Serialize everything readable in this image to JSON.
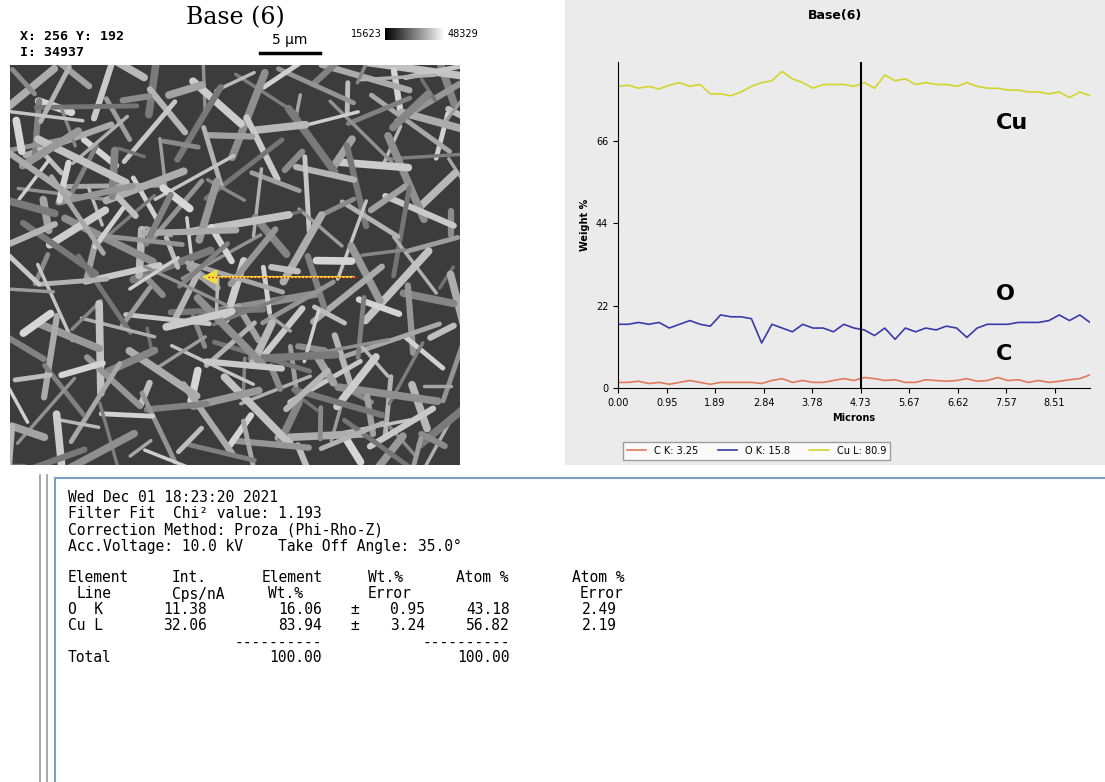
{
  "sem_image": {
    "title": "Base (6)",
    "coords": "X: 256 Y: 192",
    "intensity": "I: 34937",
    "scale_bar": "5 µm",
    "gray_min": "15623",
    "gray_max": "48329"
  },
  "chart_data": {
    "type": "line",
    "title": "Base(6)",
    "x_label": "Microns",
    "y_label": "Weight %",
    "x": [
      0,
      0.2,
      0.4,
      0.6,
      0.8,
      1.0,
      1.2,
      1.4,
      1.6,
      1.8,
      2.0,
      2.2,
      2.4,
      2.6,
      2.8,
      3.0,
      3.2,
      3.4,
      3.6,
      3.8,
      4.0,
      4.2,
      4.4,
      4.6,
      4.8,
      5.0,
      5.2,
      5.4,
      5.6,
      5.8,
      6.0,
      6.2,
      6.4,
      6.6,
      6.8,
      7.0,
      7.2,
      7.4,
      7.6,
      7.8,
      8.0,
      8.2,
      8.4,
      8.6,
      8.8,
      9.0,
      9.2
    ],
    "series": [
      {
        "name": "C K: 3.25",
        "color": "#e07a5a",
        "values": [
          1.5,
          1.5,
          1.8,
          1.2,
          1.5,
          1.0,
          1.5,
          2.0,
          1.5,
          1.0,
          1.5,
          1.5,
          1.5,
          1.5,
          1.2,
          2.0,
          2.5,
          1.5,
          2.0,
          1.5,
          1.5,
          2.0,
          2.5,
          2.0,
          2.8,
          2.5,
          2.0,
          2.2,
          1.5,
          1.5,
          2.2,
          2.0,
          1.8,
          2.0,
          2.5,
          1.8,
          2.0,
          2.8,
          2.0,
          2.2,
          1.5,
          2.0,
          1.5,
          1.8,
          2.2,
          2.5,
          3.5
        ]
      },
      {
        "name": "O K: 15.8",
        "color": "#3a3aa8",
        "values": [
          17.0,
          17.0,
          17.5,
          17.0,
          17.5,
          16.0,
          17.0,
          18.0,
          17.0,
          16.5,
          19.5,
          19.0,
          19.0,
          18.5,
          12.0,
          17.0,
          16.0,
          15.0,
          17.0,
          16.0,
          16.0,
          15.0,
          17.0,
          16.0,
          15.5,
          14.0,
          16.0,
          13.0,
          16.0,
          15.0,
          16.0,
          15.5,
          16.5,
          16.0,
          13.5,
          16.0,
          17.0,
          17.0,
          17.0,
          17.5,
          17.5,
          17.5,
          18.0,
          19.5,
          18.0,
          19.5,
          17.5
        ]
      },
      {
        "name": "Cu L: 80.9",
        "color": "#d4d42c",
        "values": [
          80.5,
          80.8,
          80.0,
          80.5,
          79.8,
          80.8,
          81.5,
          80.5,
          81.0,
          78.5,
          78.5,
          78.0,
          79.0,
          80.5,
          81.5,
          82.0,
          84.5,
          82.5,
          81.5,
          80.0,
          81.0,
          81.0,
          81.0,
          80.5,
          81.5,
          80.0,
          83.5,
          82.0,
          82.5,
          81.0,
          81.5,
          81.0,
          81.0,
          80.5,
          81.5,
          80.5,
          80.0,
          80.0,
          79.5,
          79.5,
          79.0,
          79.0,
          78.5,
          79.0,
          77.5,
          79.0,
          78.0
        ]
      }
    ],
    "annotations": [
      "C",
      "O",
      "Cu"
    ],
    "cursor": 4.73,
    "xlim": [
      0,
      9.2
    ],
    "xticks": [
      {
        "value": 0,
        "label": "0.00"
      },
      0.95,
      1.89,
      2.84,
      3.78,
      4.73,
      5.67,
      6.62,
      7.57,
      8.51
    ],
    "ylim": [
      0,
      87
    ],
    "yticks": [
      0,
      22,
      44,
      66
    ],
    "grid": false,
    "legend": "upper left"
  },
  "report": {
    "lines": [
      "Wed Dec 01 18:23:20 2021",
      "Filter Fit  Chi² value: 1.193",
      "Correction Method: Proza (Phi-Rho-Z)",
      "Acc.Voltage: 10.0 kV    Take Off Angle: 35.0°"
    ],
    "columns": [
      [
        "Element",
        "Line"
      ],
      [
        "Int.",
        "Cps/nA"
      ],
      [
        "Element",
        "Wt.%"
      ],
      [
        "Wt.%",
        "Error"
      ],
      [
        "Atom %"
      ],
      [
        "Atom %",
        "Error"
      ]
    ],
    "plus_minus": "±",
    "rows": [
      [
        "O  K",
        "11.38",
        "16.06",
        "0.95",
        "43.18",
        "2.49"
      ],
      [
        "Cu L",
        "32.06",
        "83.94",
        "3.24",
        "56.82",
        "2.19"
      ]
    ],
    "separator": "----------",
    "total": {
      "label": "Total",
      "wt": "100.00",
      "atom": "100.00"
    }
  }
}
